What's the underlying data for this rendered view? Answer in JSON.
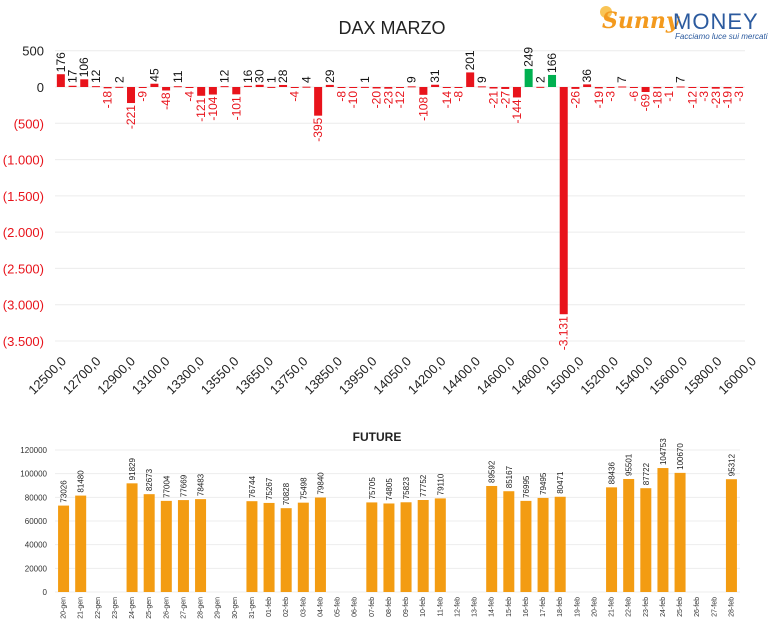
{
  "logo": {
    "word1": "Sunny",
    "word2": "MONEY",
    "tagline": "Facciamo luce sui mercati"
  },
  "colors": {
    "positive": "#00b050",
    "negative": "#e8131b",
    "future_bar": "#f39c12",
    "axis_text_neg": "#e8131b"
  },
  "chart_data": [
    {
      "type": "bar",
      "title": "DAX MARZO",
      "xlabel": "",
      "ylabel": "",
      "ylim": [
        -3500,
        500
      ],
      "y_ticks": [
        500,
        0,
        -500,
        -1000,
        -1500,
        -2000,
        -2500,
        -3000,
        -3500
      ],
      "y_tick_labels": [
        "500",
        "0",
        "(500)",
        "(1.000)",
        "(1.500)",
        "(2.000)",
        "(2.500)",
        "(3.000)",
        "(3.500)"
      ],
      "x_tick_labels": [
        "12500,0",
        "12700,0",
        "12900,0",
        "13100,0",
        "13300,0",
        "13550,0",
        "13650,0",
        "13750,0",
        "13850,0",
        "13950,0",
        "14050,0",
        "14200,0",
        "14400,0",
        "14600,0",
        "14800,0",
        "15000,0",
        "15200,0",
        "15400,0",
        "15600,0",
        "15800,0",
        "16000,0"
      ],
      "values": [
        176,
        17,
        106,
        12,
        -18,
        2,
        -221,
        -9,
        45,
        -48,
        11,
        -4,
        -121,
        -104,
        12,
        -101,
        16,
        30,
        1,
        28,
        -4,
        4,
        -395,
        29,
        -8,
        -10,
        1,
        -20,
        -23,
        -12,
        9,
        -108,
        31,
        -14,
        -8,
        201,
        9,
        -21,
        -27,
        -144,
        249,
        2,
        166,
        -3131,
        -26,
        36,
        -19,
        -3,
        7,
        -6,
        -69,
        -18,
        -1,
        7,
        -12,
        -3,
        -23,
        -19,
        -3
      ],
      "positive_highlight_indices": [
        40,
        42
      ]
    },
    {
      "type": "bar",
      "title": "FUTURE",
      "xlabel": "",
      "ylabel": "",
      "ylim": [
        0,
        120000
      ],
      "y_ticks": [
        0,
        20000,
        40000,
        60000,
        80000,
        100000,
        120000
      ],
      "y_tick_labels": [
        "0",
        "20000",
        "40000",
        "60000",
        "80000",
        "100000",
        "120000"
      ],
      "categories": [
        "20-gen",
        "21-gen",
        "22-gen",
        "23-gen",
        "24-gen",
        "25-gen",
        "26-gen",
        "27-gen",
        "28-gen",
        "29-gen",
        "30-gen",
        "31-gen",
        "01-feb",
        "02-feb",
        "03-feb",
        "04-feb",
        "05-feb",
        "06-feb",
        "07-feb",
        "08-feb",
        "09-feb",
        "10-feb",
        "11-feb",
        "12-feb",
        "13-feb",
        "14-feb",
        "15-feb",
        "16-feb",
        "17-feb",
        "18-feb",
        "19-feb",
        "20-feb",
        "21-feb",
        "22-feb",
        "23-feb",
        "24-feb",
        "25-feb",
        "26-feb",
        "27-feb",
        "28-feb"
      ],
      "values": [
        73026,
        81480,
        null,
        null,
        91829,
        82673,
        77004,
        77669,
        78483,
        null,
        null,
        76744,
        75267,
        70828,
        75498,
        79840,
        null,
        null,
        75705,
        74805,
        75823,
        77752,
        79110,
        null,
        null,
        89592,
        85167,
        76995,
        79495,
        80471,
        null,
        null,
        88436,
        95501,
        87722,
        104753,
        100670,
        null,
        null,
        95312
      ],
      "value_labels": [
        "73026",
        "81480",
        "",
        "",
        "91829",
        "82673",
        "77004",
        "77669",
        "78483",
        "",
        "",
        "76744",
        "75267",
        "70828",
        "75498",
        "79840",
        "",
        "",
        "75705",
        "74805",
        "75823",
        "77752",
        "79110",
        "",
        "",
        "89592",
        "85167",
        "76995",
        "79495",
        "80471",
        "",
        "",
        "88436",
        "95501",
        "87722",
        "104753",
        "100670",
        "",
        "",
        "95312"
      ]
    }
  ]
}
